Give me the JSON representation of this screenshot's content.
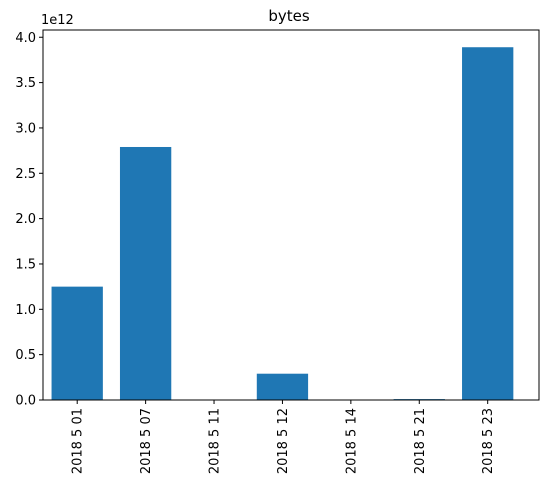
{
  "chart_data": {
    "type": "bar",
    "title": "bytes",
    "xlabel": "",
    "ylabel": "",
    "y_multiplier_label": "1e12",
    "y_scale": 1000000000000.0,
    "categories": [
      "2018 5 01",
      "2018 5 07",
      "2018 5 11",
      "2018 5 12",
      "2018 5 14",
      "2018 5 21",
      "2018 5 23"
    ],
    "values": [
      1250000000000,
      2790000000000,
      0,
      290000000000,
      0,
      10000000000,
      3890000000000
    ],
    "ylim": [
      0,
      4080000000000.0
    ],
    "yticks": [
      0,
      500000000000.0,
      1000000000000.0,
      1500000000000.0,
      2000000000000.0,
      2500000000000.0,
      3000000000000.0,
      3500000000000.0,
      4000000000000.0
    ],
    "ytick_labels": [
      "0.0",
      "0.5",
      "1.0",
      "1.5",
      "2.0",
      "2.5",
      "3.0",
      "3.5",
      "4.0"
    ],
    "grid": false,
    "bar_color": "#1f77b4"
  }
}
